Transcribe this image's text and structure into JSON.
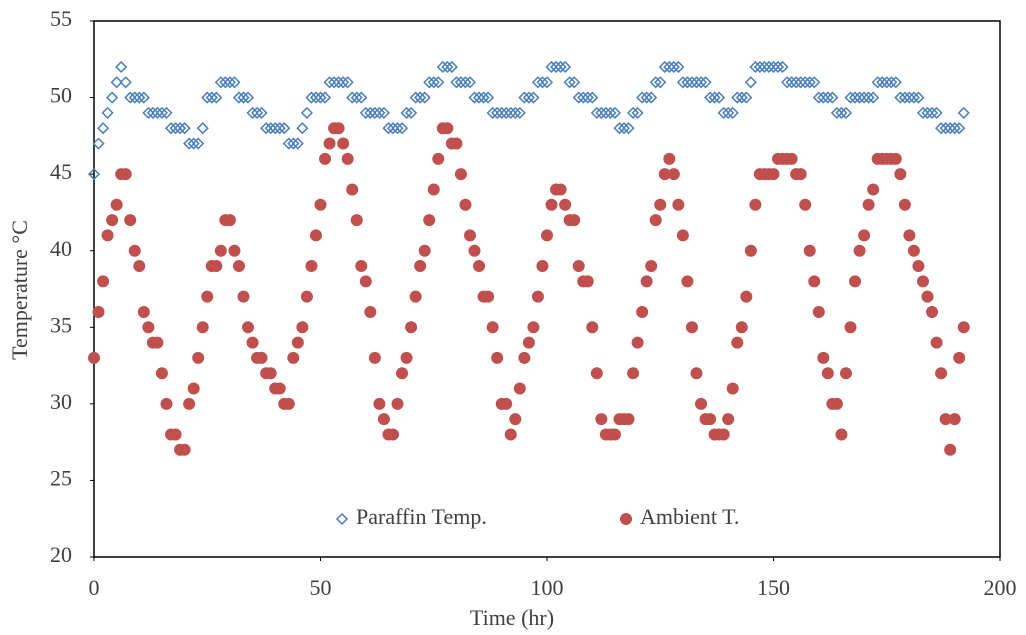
{
  "chart_data": {
    "type": "scatter",
    "x_label": "Time (hr)",
    "y_label": "Temperature °C",
    "xlim": [
      0,
      200
    ],
    "xticks": [
      0,
      50,
      100,
      150,
      200
    ],
    "ylim": [
      20,
      55
    ],
    "yticks": [
      20,
      25,
      30,
      35,
      40,
      45,
      50,
      55
    ],
    "grid": false,
    "legend": "bottom",
    "x": [
      0,
      1,
      2,
      3,
      4,
      5,
      6,
      7,
      8,
      9,
      10,
      11,
      12,
      13,
      14,
      15,
      16,
      17,
      18,
      19,
      20,
      21,
      22,
      23,
      24,
      25,
      26,
      27,
      28,
      29,
      30,
      31,
      32,
      33,
      34,
      35,
      36,
      37,
      38,
      39,
      40,
      41,
      42,
      43,
      44,
      45,
      46,
      47,
      48,
      49,
      50,
      51,
      52,
      53,
      54,
      55,
      56,
      57,
      58,
      59,
      60,
      61,
      62,
      63,
      64,
      65,
      66,
      67,
      68,
      69,
      70,
      71,
      72,
      73,
      74,
      75,
      76,
      77,
      78,
      79,
      80,
      81,
      82,
      83,
      84,
      85,
      86,
      87,
      88,
      89,
      90,
      91,
      92,
      93,
      94,
      95,
      96,
      97,
      98,
      99,
      100,
      101,
      102,
      103,
      104,
      105,
      106,
      107,
      108,
      109,
      110,
      111,
      112,
      113,
      114,
      115,
      116,
      117,
      118,
      119,
      120,
      121,
      122,
      123,
      124,
      125,
      126,
      127,
      128,
      129,
      130,
      131,
      132,
      133,
      134,
      135,
      136,
      137,
      138,
      139,
      140,
      141,
      142,
      143,
      144,
      145,
      146,
      147,
      148,
      149,
      150,
      151,
      152,
      153,
      154,
      155,
      156,
      157,
      158,
      159,
      160,
      161,
      162,
      163,
      164,
      165,
      166,
      167,
      168,
      169,
      170,
      171,
      172,
      173,
      174,
      175,
      176,
      177,
      178,
      179,
      180,
      181,
      182,
      183,
      184,
      185,
      186,
      187,
      188,
      189,
      190,
      191,
      192
    ],
    "series": [
      {
        "name": "Paraffin Temp.",
        "color": "#4a7ebb",
        "marker": "diamond",
        "values": [
          45,
          47,
          48,
          49,
          50,
          51,
          52,
          51,
          50,
          50,
          50,
          50,
          49,
          49,
          49,
          49,
          49,
          48,
          48,
          48,
          48,
          47,
          47,
          47,
          48,
          50,
          50,
          50,
          51,
          51,
          51,
          51,
          50,
          50,
          50,
          49,
          49,
          49,
          48,
          48,
          48,
          48,
          48,
          47,
          47,
          47,
          48,
          49,
          50,
          50,
          50,
          50,
          51,
          51,
          51,
          51,
          51,
          50,
          50,
          50,
          49,
          49,
          49,
          49,
          49,
          48,
          48,
          48,
          48,
          49,
          49,
          50,
          50,
          50,
          51,
          51,
          51,
          52,
          52,
          52,
          51,
          51,
          51,
          51,
          50,
          50,
          50,
          50,
          49,
          49,
          49,
          49,
          49,
          49,
          49,
          50,
          50,
          50,
          51,
          51,
          51,
          52,
          52,
          52,
          52,
          51,
          51,
          50,
          50,
          50,
          50,
          49,
          49,
          49,
          49,
          49,
          48,
          48,
          48,
          49,
          49,
          50,
          50,
          50,
          51,
          51,
          52,
          52,
          52,
          52,
          51,
          51,
          51,
          51,
          51,
          51,
          50,
          50,
          50,
          49,
          49,
          49,
          50,
          50,
          50,
          51,
          52,
          52,
          52,
          52,
          52,
          52,
          52,
          51,
          51,
          51,
          51,
          51,
          51,
          51,
          50,
          50,
          50,
          50,
          49,
          49,
          49,
          50,
          50,
          50,
          50,
          50,
          50,
          51,
          51,
          51,
          51,
          51,
          50,
          50,
          50,
          50,
          50,
          49,
          49,
          49,
          49,
          48,
          48,
          48,
          48,
          48,
          49
        ]
      },
      {
        "name": "Ambient T.",
        "color": "#c0504d",
        "marker": "circle",
        "values": [
          33,
          36,
          38,
          41,
          42,
          43,
          45,
          45,
          42,
          40,
          39,
          36,
          35,
          34,
          34,
          32,
          30,
          28,
          28,
          27,
          27,
          30,
          31,
          33,
          35,
          37,
          39,
          39,
          40,
          42,
          42,
          40,
          39,
          37,
          35,
          34,
          33,
          33,
          32,
          32,
          31,
          31,
          30,
          30,
          33,
          34,
          35,
          37,
          39,
          41,
          43,
          46,
          47,
          48,
          48,
          47,
          46,
          44,
          42,
          39,
          38,
          36,
          33,
          30,
          29,
          28,
          28,
          30,
          32,
          33,
          35,
          37,
          39,
          40,
          42,
          44,
          46,
          48,
          48,
          47,
          47,
          45,
          43,
          41,
          40,
          39,
          37,
          37,
          35,
          33,
          30,
          30,
          28,
          29,
          31,
          33,
          34,
          35,
          37,
          39,
          41,
          43,
          44,
          44,
          43,
          42,
          42,
          39,
          38,
          38,
          35,
          32,
          29,
          28,
          28,
          28,
          29,
          29,
          29,
          32,
          34,
          36,
          38,
          39,
          42,
          43,
          45,
          46,
          45,
          43,
          41,
          38,
          35,
          32,
          30,
          29,
          29,
          28,
          28,
          28,
          29,
          31,
          34,
          35,
          37,
          40,
          43,
          45,
          45,
          45,
          45,
          46,
          46,
          46,
          46,
          45,
          45,
          43,
          40,
          38,
          36,
          33,
          32,
          30,
          30,
          28,
          32,
          35,
          38,
          40,
          41,
          43,
          44,
          46,
          46,
          46,
          46,
          46,
          45,
          43,
          41,
          40,
          39,
          38,
          37,
          36,
          34,
          32,
          29,
          27,
          29,
          33,
          35
        ]
      }
    ]
  }
}
